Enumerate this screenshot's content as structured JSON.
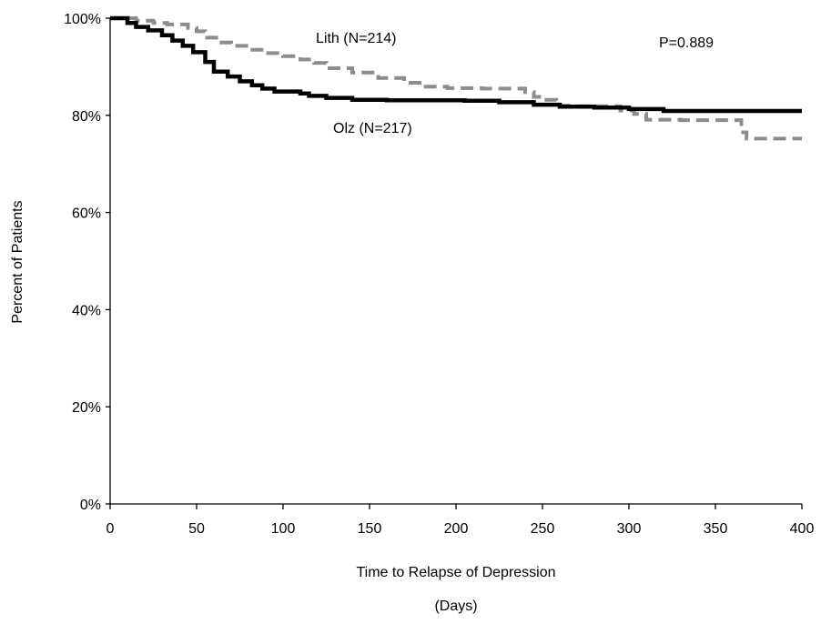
{
  "chart_data": {
    "type": "line",
    "step": true,
    "xlabel": "Time to Relapse of Depression",
    "xlabel_unit": "(Days)",
    "ylabel": "Percent of Patients",
    "xlim": [
      0,
      400
    ],
    "ylim": [
      0,
      100
    ],
    "x_ticks": [
      "0",
      "50",
      "100",
      "150",
      "200",
      "250",
      "300",
      "350",
      "400"
    ],
    "y_ticks": [
      "0%",
      "20%",
      "40%",
      "60%",
      "80%",
      "100%"
    ],
    "grid": false,
    "annotations": {
      "p_value": "P=0.889"
    },
    "series": [
      {
        "name": "Lith (N=214)",
        "color": "#8c8c8c",
        "dash": "dashed",
        "x": [
          0,
          15,
          25,
          33,
          45,
          50,
          55,
          63,
          70,
          80,
          90,
          100,
          110,
          118,
          125,
          140,
          155,
          170,
          180,
          195,
          215,
          240,
          245,
          250,
          258,
          265,
          295,
          303,
          310,
          330,
          355,
          365,
          368,
          380,
          400
        ],
        "y": [
          100,
          99.5,
          99,
          98.7,
          98,
          97.3,
          96,
          95,
          94.3,
          93.5,
          92.8,
          92.2,
          91.5,
          90.8,
          89.7,
          88.8,
          87.7,
          86.7,
          85.9,
          85.6,
          85.5,
          84.8,
          83.8,
          83.2,
          82,
          81.9,
          81,
          80.3,
          79.1,
          79.0,
          79.0,
          76.5,
          75.2,
          75.2,
          75.2
        ]
      },
      {
        "name": "Olz (N=217)",
        "color": "#000000",
        "dash": "solid",
        "x": [
          0,
          10,
          15,
          22,
          30,
          36,
          42,
          48,
          55,
          60,
          68,
          75,
          82,
          88,
          95,
          110,
          115,
          125,
          140,
          160,
          180,
          205,
          225,
          245,
          260,
          280,
          300,
          320,
          340,
          360,
          380,
          400
        ],
        "y": [
          100,
          99,
          98.2,
          97.5,
          96.5,
          95.4,
          94.3,
          93,
          91,
          89,
          88,
          87,
          86.2,
          85.5,
          84.9,
          84.5,
          84,
          83.6,
          83.2,
          83.1,
          83.1,
          83.0,
          82.7,
          82.2,
          81.8,
          81.6,
          81.3,
          80.9,
          80.9,
          80.9,
          80.9,
          80.9
        ]
      }
    ]
  }
}
